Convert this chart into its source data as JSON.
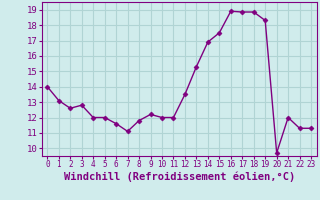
{
  "x": [
    0,
    1,
    2,
    3,
    4,
    5,
    6,
    7,
    8,
    9,
    10,
    11,
    12,
    13,
    14,
    15,
    16,
    17,
    18,
    19,
    20,
    21,
    22,
    23
  ],
  "y": [
    14.0,
    13.1,
    12.6,
    12.8,
    12.0,
    12.0,
    11.6,
    11.1,
    11.8,
    12.2,
    12.0,
    12.0,
    13.5,
    15.3,
    16.9,
    17.5,
    18.9,
    18.85,
    18.85,
    18.3,
    9.7,
    12.0,
    11.3,
    11.3
  ],
  "line_color": "#800080",
  "marker": "D",
  "marker_size": 2.5,
  "bg_color": "#d0ecec",
  "grid_color": "#b0d4d4",
  "xlabel": "Windchill (Refroidissement éolien,°C)",
  "xlim": [
    -0.5,
    23.5
  ],
  "ylim": [
    9.5,
    19.5
  ],
  "yticks": [
    10,
    11,
    12,
    13,
    14,
    15,
    16,
    17,
    18,
    19
  ],
  "xticks": [
    0,
    1,
    2,
    3,
    4,
    5,
    6,
    7,
    8,
    9,
    10,
    11,
    12,
    13,
    14,
    15,
    16,
    17,
    18,
    19,
    20,
    21,
    22,
    23
  ]
}
